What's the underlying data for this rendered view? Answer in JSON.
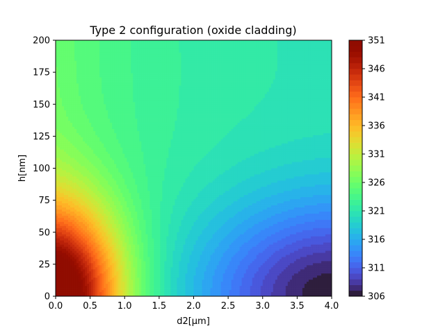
{
  "chart_data": {
    "type": "heatmap",
    "title": "Type 2 configuration (oxide cladding)",
    "xlabel": "d2[μm]",
    "ylabel": "h[nm]",
    "xlim": [
      0,
      4.0
    ],
    "ylim": [
      0,
      200
    ],
    "x_ticks": [
      0.0,
      0.5,
      1.0,
      1.5,
      2.0,
      2.5,
      3.0,
      3.5,
      4.0
    ],
    "x_tick_labels": [
      "0.0",
      "0.5",
      "1.0",
      "1.5",
      "2.0",
      "2.5",
      "3.0",
      "3.5",
      "4.0"
    ],
    "y_ticks": [
      0,
      25,
      50,
      75,
      100,
      125,
      150,
      175,
      200
    ],
    "y_tick_labels": [
      "0",
      "25",
      "50",
      "75",
      "100",
      "125",
      "150",
      "175",
      "200"
    ],
    "colorbar": {
      "min": 306,
      "max": 351,
      "ticks": [
        306,
        311,
        316,
        321,
        326,
        331,
        336,
        341,
        346,
        351
      ],
      "tick_labels": [
        "306",
        "311",
        "316",
        "321",
        "326",
        "331",
        "336",
        "341",
        "346",
        "351"
      ],
      "colormap": "turbo"
    },
    "value_field": {
      "neutral_value": 321,
      "corner_values": {
        "x0_y0": 351,
        "x4_y0": 306,
        "x0_y200": 326,
        "x4_y200": 320.5
      }
    }
  }
}
